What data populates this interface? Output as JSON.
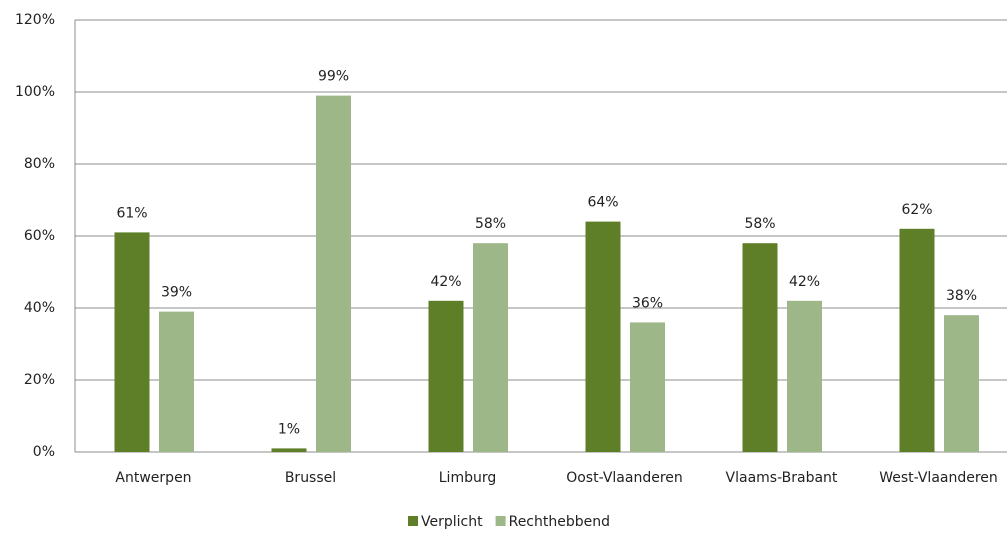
{
  "chart_data": {
    "type": "bar",
    "categories": [
      "Antwerpen",
      "Brussel",
      "Limburg",
      "Oost-Vlaanderen",
      "Vlaams-Brabant",
      "West-Vlaanderen"
    ],
    "series": [
      {
        "name": "Verplicht",
        "color": "#5e7f28",
        "values": [
          61,
          1,
          42,
          64,
          58,
          62
        ],
        "value_labels": [
          "61%",
          "1%",
          "42%",
          "64%",
          "58%",
          "62%"
        ]
      },
      {
        "name": "Rechthebbend",
        "color": "#9eb789",
        "values": [
          39,
          99,
          58,
          36,
          42,
          38
        ],
        "value_labels": [
          "39%",
          "99%",
          "58%",
          "36%",
          "42%",
          "38%"
        ]
      }
    ],
    "ylim": [
      0,
      120
    ],
    "yticks": [
      {
        "value": 0,
        "label": "0%"
      },
      {
        "value": 20,
        "label": "20%"
      },
      {
        "value": 40,
        "label": "40%"
      },
      {
        "value": 60,
        "label": "60%"
      },
      {
        "value": 80,
        "label": "80%"
      },
      {
        "value": 100,
        "label": "100%"
      },
      {
        "value": 120,
        "label": "120%"
      }
    ],
    "grid": true,
    "legend": "bottom"
  }
}
